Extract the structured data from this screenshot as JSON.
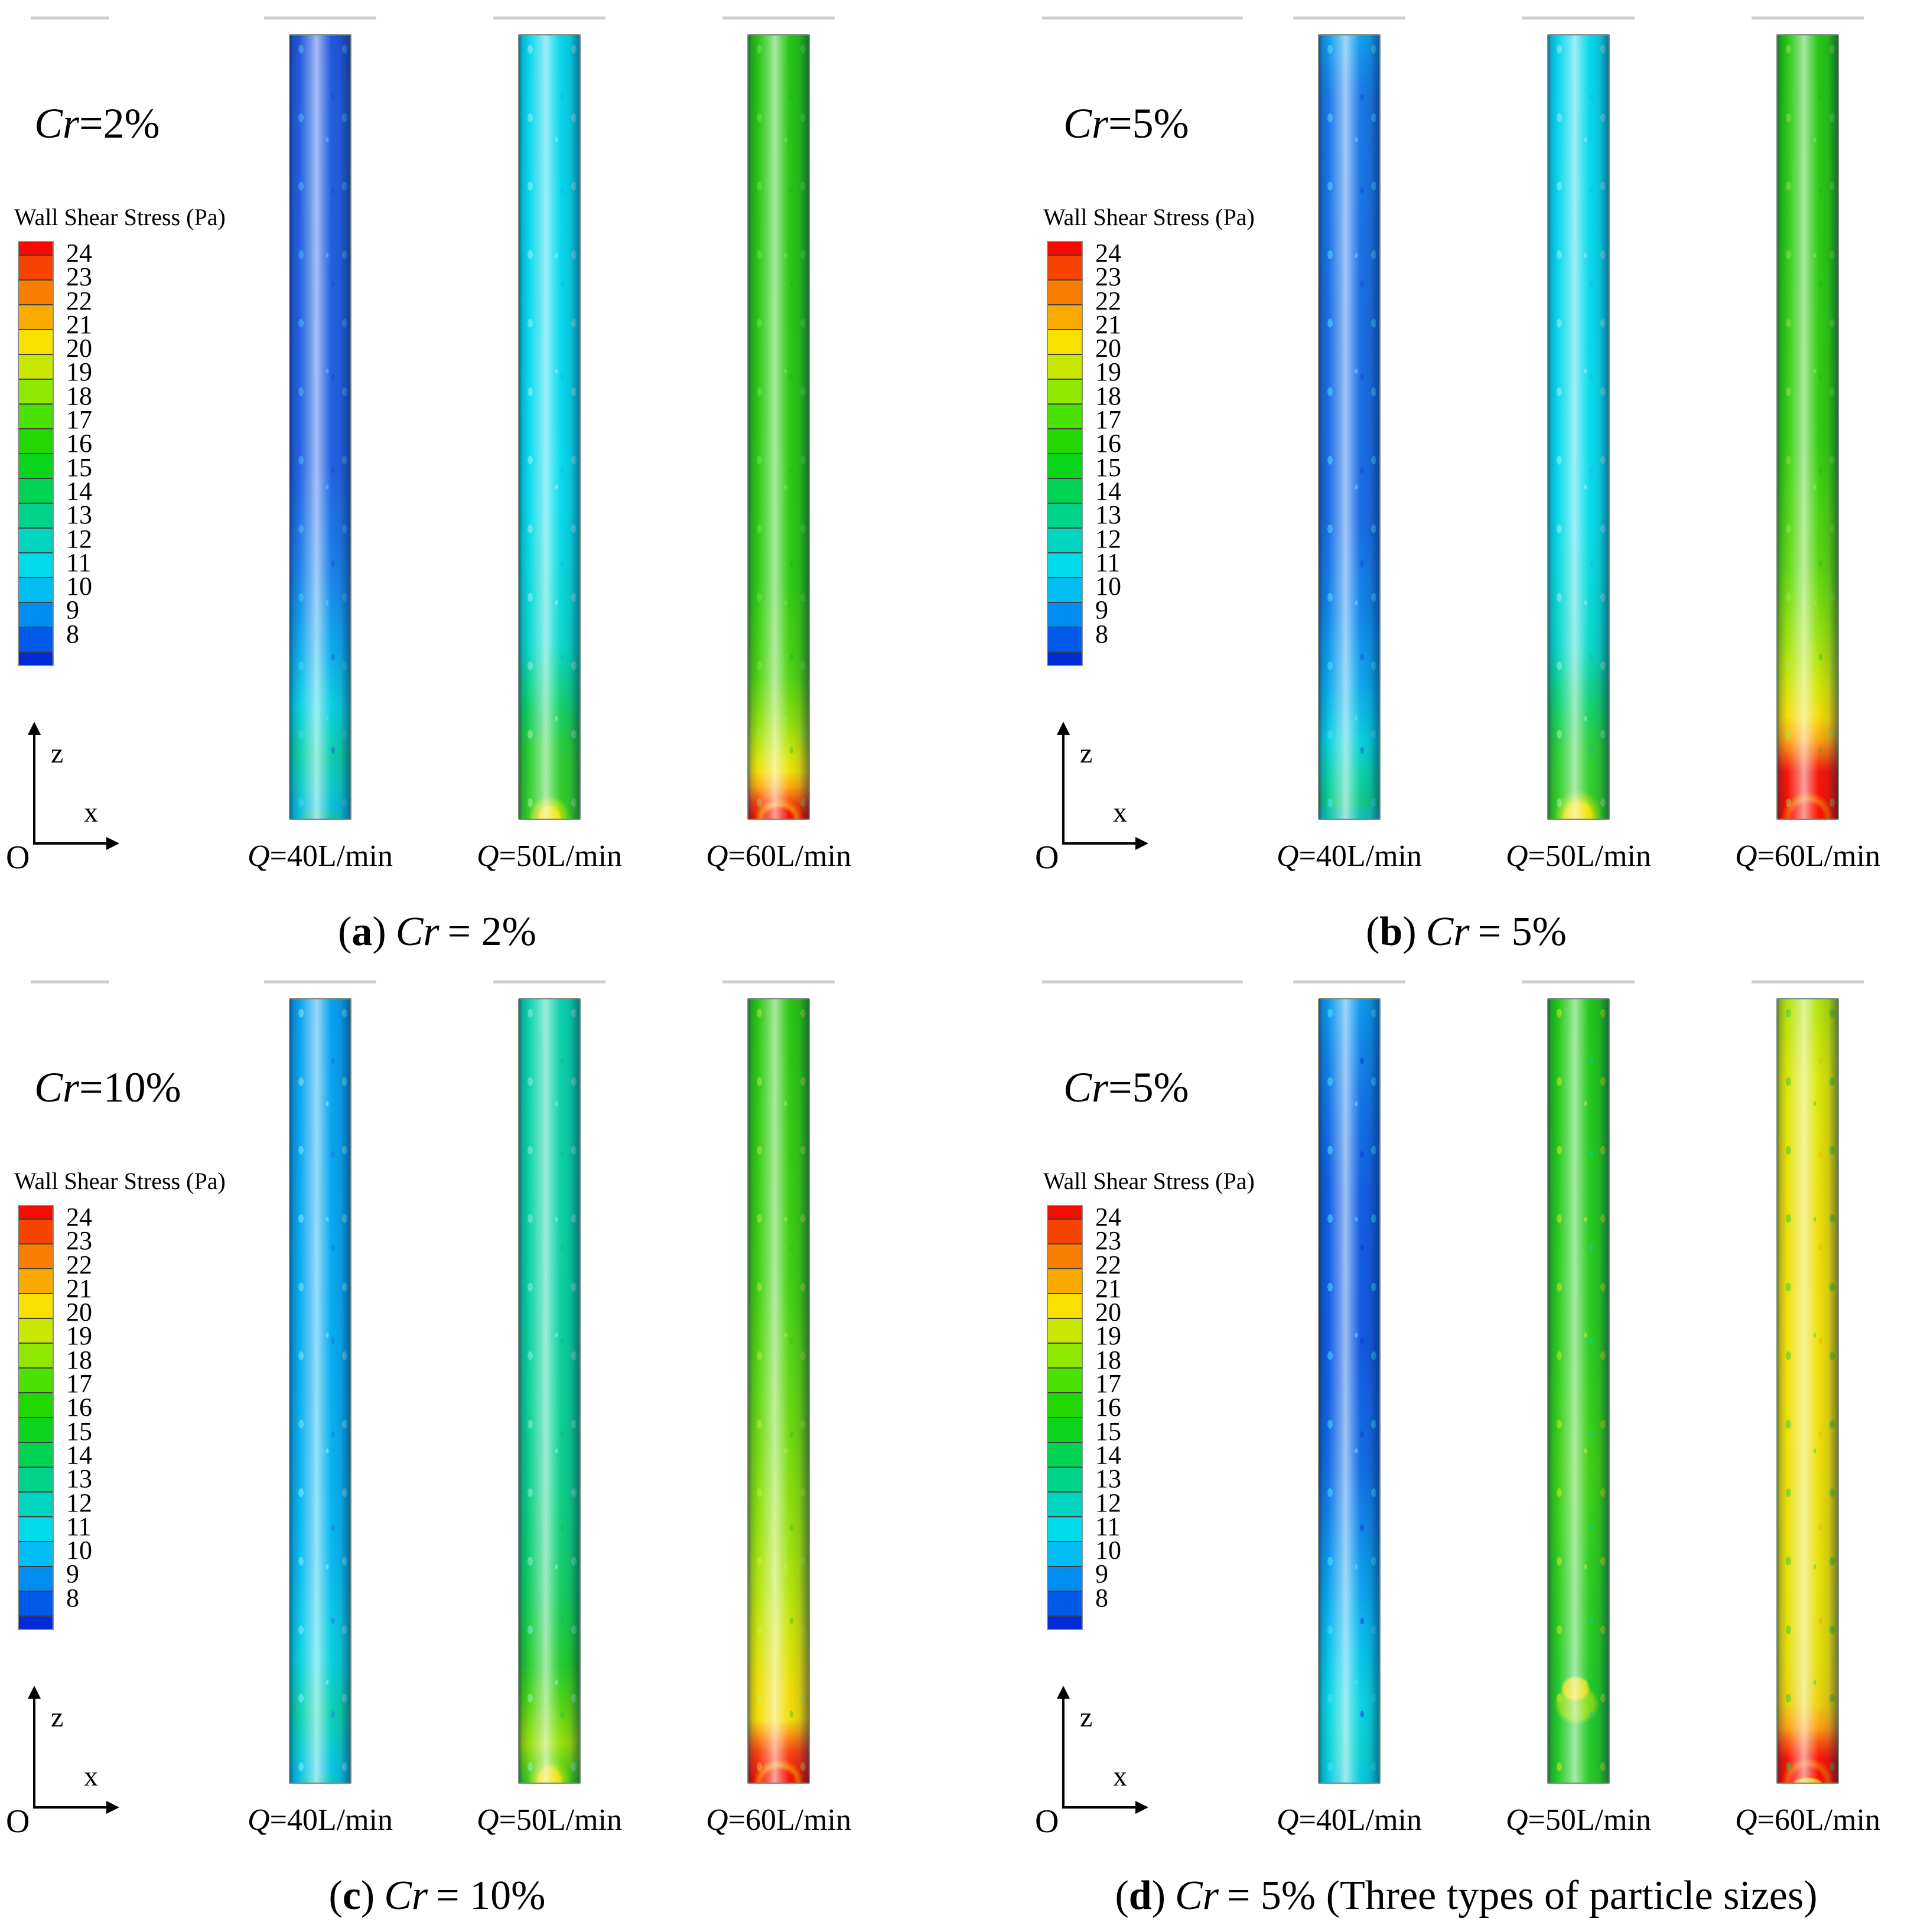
{
  "shared": {
    "legend_title": "Wall Shear Stress (Pa)",
    "colorbar": {
      "min": 8,
      "max": 24,
      "labels": [
        "24",
        "23",
        "22",
        "21",
        "20",
        "19",
        "18",
        "17",
        "16",
        "15",
        "14",
        "13",
        "12",
        "11",
        "10",
        "9",
        "8"
      ],
      "colors": [
        "#f60b00",
        "#f64300",
        "#f97e00",
        "#fbab00",
        "#f8e000",
        "#c9e800",
        "#8fe800",
        "#4ae200",
        "#22d800",
        "#0cd41c",
        "#00d455",
        "#00d38a",
        "#00d5c0",
        "#00dcec",
        "#00bdf4",
        "#008cf0",
        "#005ae8",
        "#002cd8"
      ]
    },
    "axis": {
      "vertical": "z",
      "horizontal": "x",
      "origin": "O"
    },
    "flow_labels": [
      "Q=40L/min",
      "Q=50L/min",
      "Q=60L/min"
    ],
    "rule_color": "#cdcdcd"
  },
  "panels": [
    {
      "id": "a",
      "cr": {
        "italic": "Cr",
        "value": "=2%"
      },
      "caption": {
        "open": "(",
        "tag": "a",
        "close": ")",
        "italic": "Cr",
        "rest": "= 2%"
      },
      "pipes": [
        {
          "stops": [
            [
              0,
              "#2456da"
            ],
            [
              10,
              "#2360e2"
            ],
            [
              55,
              "#2263e4"
            ],
            [
              68,
              "#1d82ea"
            ],
            [
              78,
              "#10aaee"
            ],
            [
              86,
              "#0ad2e2"
            ],
            [
              92,
              "#0ed0aa"
            ],
            [
              96,
              "#0ec9c9"
            ],
            [
              100,
              "#0abce8"
            ]
          ],
          "spots": [
            "rgba(90,210,255,0.40)",
            "rgba(25,60,205,0.35)"
          ],
          "glow": [
            [
              "rgba(30,200,130,0.45)",
              60,
              26
            ]
          ]
        },
        {
          "stops": [
            [
              0,
              "#0ad6ec"
            ],
            [
              60,
              "#0adcee"
            ],
            [
              78,
              "#0bd8cc"
            ],
            [
              86,
              "#14d26a"
            ],
            [
              91,
              "#2cd036"
            ],
            [
              100,
              "#36d024"
            ]
          ],
          "spots": [
            "rgba(255,255,255,0.30)",
            "rgba(15,170,230,0.30)"
          ],
          "glow": [
            [
              "rgba(247,226,8,0.95)",
              30,
              34
            ],
            [
              "rgba(170,225,14,0.80)",
              48,
              52
            ]
          ]
        },
        {
          "stops": [
            [
              0,
              "#26c614"
            ],
            [
              70,
              "#2ecc12"
            ],
            [
              82,
              "#50d411"
            ],
            [
              88,
              "#94e00e"
            ],
            [
              92,
              "#d6e60a"
            ],
            [
              94,
              "#f2e009"
            ],
            [
              96,
              "#fba512"
            ],
            [
              98,
              "#fa4510"
            ],
            [
              100,
              "#f60d00"
            ]
          ],
          "spots": [
            "rgba(130,240,110,0.35)",
            "rgba(12,175,40,0.30)"
          ],
          "glow": [
            [
              "rgba(246,11,0,0.95)",
              40,
              30
            ],
            [
              "rgba(251,140,10,0.85)",
              56,
              48
            ]
          ]
        }
      ]
    },
    {
      "id": "b",
      "cr": {
        "italic": "Cr",
        "value": "=5%"
      },
      "caption": {
        "open": "(",
        "tag": "b",
        "close": ")",
        "italic": "Cr",
        "rest": "= 5%"
      },
      "pipes": [
        {
          "stops": [
            [
              0,
              "#12a0ee"
            ],
            [
              8,
              "#1a7ae8"
            ],
            [
              35,
              "#1c70e6"
            ],
            [
              62,
              "#1b6ee6"
            ],
            [
              74,
              "#1289ec"
            ],
            [
              83,
              "#0dabee"
            ],
            [
              90,
              "#0ad0de"
            ],
            [
              95,
              "#0ed2a6"
            ],
            [
              98,
              "#12cb8a"
            ],
            [
              100,
              "#12c4d8"
            ]
          ],
          "spots": [
            "rgba(80,225,255,0.50)",
            "rgba(22,65,215,0.42)"
          ],
          "glow": [
            [
              "rgba(16,195,150,0.50)",
              62,
              28
            ]
          ]
        },
        {
          "stops": [
            [
              0,
              "#0ad6ec"
            ],
            [
              60,
              "#0adcee"
            ],
            [
              78,
              "#0bd8cc"
            ],
            [
              86,
              "#14d26a"
            ],
            [
              91,
              "#2cd036"
            ],
            [
              100,
              "#36d024"
            ]
          ],
          "spots": [
            "rgba(255,255,255,0.30)",
            "rgba(15,170,230,0.30)"
          ],
          "glow": [
            [
              "rgba(247,226,8,0.95)",
              40,
              48
            ],
            [
              "rgba(150,222,18,0.80)",
              56,
              66
            ]
          ]
        },
        {
          "stops": [
            [
              0,
              "#26c614"
            ],
            [
              52,
              "#34cd12"
            ],
            [
              68,
              "#5ed810"
            ],
            [
              77,
              "#9ae20e"
            ],
            [
              83,
              "#d0e50a"
            ],
            [
              87,
              "#f4dd09"
            ],
            [
              90,
              "#fba512"
            ],
            [
              92,
              "#fa5e10"
            ],
            [
              94,
              "#f7180a"
            ],
            [
              100,
              "#f60d00"
            ]
          ],
          "spots": [
            "rgba(150,240,90,0.40)",
            "rgba(12,175,40,0.30)"
          ],
          "glow": [
            [
              "rgba(246,11,0,0.90)",
              48,
              44
            ],
            [
              "rgba(251,120,10,0.80)",
              60,
              62
            ]
          ]
        }
      ]
    },
    {
      "id": "c",
      "cr": {
        "italic": "Cr",
        "value": "=10%"
      },
      "caption": {
        "open": "(",
        "tag": "c",
        "close": ")",
        "italic": "Cr",
        "rest": "= 10%"
      },
      "pipes": [
        {
          "stops": [
            [
              0,
              "#0aa2f0"
            ],
            [
              50,
              "#09aef2"
            ],
            [
              72,
              "#0abaf0"
            ],
            [
              84,
              "#0ad2e2"
            ],
            [
              91,
              "#0dd2b0"
            ],
            [
              96,
              "#0acbd4"
            ],
            [
              100,
              "#0ac0ec"
            ]
          ],
          "spots": [
            "rgba(140,240,255,0.50)",
            "rgba(25,95,235,0.35)"
          ],
          "glow": [
            [
              "rgba(20,205,170,0.50)",
              58,
              26
            ]
          ]
        },
        {
          "stops": [
            [
              0,
              "#0cd2ae"
            ],
            [
              40,
              "#0dd2a2"
            ],
            [
              62,
              "#0fd18e"
            ],
            [
              76,
              "#13cf62"
            ],
            [
              85,
              "#25cd2e"
            ],
            [
              90,
              "#54d613"
            ],
            [
              95,
              "#9ae00e"
            ],
            [
              100,
              "#36d01e"
            ]
          ],
          "spots": [
            "rgba(150,245,230,0.45)",
            "rgba(18,185,90,0.35)"
          ],
          "glow": [
            [
              "rgba(245,225,8,0.90)",
              34,
              42
            ],
            [
              "rgba(150,222,16,0.80)",
              50,
              58
            ]
          ]
        },
        {
          "stops": [
            [
              0,
              "#2ac813"
            ],
            [
              35,
              "#3ed012"
            ],
            [
              55,
              "#6eda10"
            ],
            [
              70,
              "#9ee20e"
            ],
            [
              80,
              "#cae50b"
            ],
            [
              88,
              "#eede09"
            ],
            [
              92,
              "#f4dd09"
            ],
            [
              94,
              "#fb9012"
            ],
            [
              96,
              "#fa4510"
            ],
            [
              100,
              "#f60d00"
            ]
          ],
          "spots": [
            "rgba(210,240,80,0.40)",
            "rgba(35,185,25,0.35)"
          ],
          "glow": [
            [
              "rgba(246,11,0,0.92)",
              46,
              38
            ],
            [
              "rgba(251,150,10,0.80)",
              58,
              54
            ]
          ]
        }
      ]
    },
    {
      "id": "d",
      "cr": {
        "italic": "Cr",
        "value": "=5%"
      },
      "caption": {
        "open": "(",
        "tag": "d",
        "close": ")",
        "italic": "Cr",
        "rest": "= 5% (Three types of particle sizes)"
      },
      "pipes": [
        {
          "stops": [
            [
              0,
              "#0e9cee"
            ],
            [
              12,
              "#1378e8"
            ],
            [
              25,
              "#1460e4"
            ],
            [
              45,
              "#145ce4"
            ],
            [
              60,
              "#1470e6"
            ],
            [
              72,
              "#0f9aee"
            ],
            [
              82,
              "#0ac0ee"
            ],
            [
              90,
              "#0ad6e2"
            ],
            [
              96,
              "#0ad2d2"
            ],
            [
              100,
              "#0acae6"
            ]
          ],
          "spots": [
            "rgba(60,225,250,0.55)",
            "rgba(20,50,215,0.50)"
          ],
          "glow": [
            [
              "rgba(12,205,205,0.45)",
              58,
              24
            ]
          ]
        },
        {
          "stops": [
            [
              0,
              "#22c918"
            ],
            [
              25,
              "#26cb20"
            ],
            [
              45,
              "#2dcd1e"
            ],
            [
              60,
              "#3ed115"
            ],
            [
              72,
              "#2ece1e"
            ],
            [
              82,
              "#29cc22"
            ],
            [
              90,
              "#22ca2c"
            ],
            [
              100,
              "#28cb26"
            ]
          ],
          "spots": [
            "rgba(200,232,20,0.55)",
            "rgba(12,208,170,0.50)"
          ],
          "glow": [
            [
              "rgba(246,226,8,0.85)",
              34,
              30,
              "45%",
              "88%"
            ],
            [
              "rgba(170,226,14,0.70)",
              52,
              46,
              "47%",
              "90%"
            ]
          ]
        },
        {
          "stops": [
            [
              0,
              "#b0e20c"
            ],
            [
              10,
              "#dae60a"
            ],
            [
              25,
              "#eadf09"
            ],
            [
              45,
              "#f0e009"
            ],
            [
              60,
              "#ece009"
            ],
            [
              75,
              "#e6e00b"
            ],
            [
              85,
              "#e4de0c"
            ],
            [
              90,
              "#eed00c"
            ],
            [
              93,
              "#fba012"
            ],
            [
              95,
              "#fa5210"
            ],
            [
              97,
              "#f7150a"
            ],
            [
              100,
              "#f60d00"
            ]
          ],
          "spots": [
            "rgba(40,200,45,0.50)",
            "rgba(250,170,20,0.45)"
          ],
          "glow": [
            [
              "rgba(250,200,10,0.90)",
              34,
              12
            ],
            [
              "rgba(246,11,0,0.90)",
              48,
              42
            ],
            [
              "rgba(251,120,10,0.75)",
              60,
              58
            ]
          ]
        }
      ]
    }
  ],
  "chart_data": {
    "type": "heatmap",
    "title": "Wall shear stress contours on pipe wall for different particle volume concentrations Cr and flow rates Q",
    "legend": {
      "label": "Wall Shear Stress (Pa)",
      "range": [
        8,
        24
      ],
      "bands": 17,
      "legend_position": "left"
    },
    "panels": [
      {
        "caption": "(a) Cr = 2%",
        "series": [
          {
            "name": "Q=40L/min",
            "wss_range_Pa": [
              9,
              13
            ]
          },
          {
            "name": "Q=50L/min",
            "wss_range_Pa": [
              12,
              21
            ]
          },
          {
            "name": "Q=60L/min",
            "wss_range_Pa": [
              16,
              25
            ]
          }
        ]
      },
      {
        "caption": "(b) Cr = 5%",
        "series": [
          {
            "name": "Q=40L/min",
            "wss_range_Pa": [
              10,
              14
            ]
          },
          {
            "name": "Q=50L/min",
            "wss_range_Pa": [
              12,
              21
            ]
          },
          {
            "name": "Q=60L/min",
            "wss_range_Pa": [
              17,
              25
            ]
          }
        ]
      },
      {
        "caption": "(c) Cr = 10%",
        "series": [
          {
            "name": "Q=40L/min",
            "wss_range_Pa": [
              11,
              14
            ]
          },
          {
            "name": "Q=50L/min",
            "wss_range_Pa": [
              13,
              21
            ]
          },
          {
            "name": "Q=60L/min",
            "wss_range_Pa": [
              17,
              25
            ]
          }
        ]
      },
      {
        "caption": "(d) Cr = 5% (Three types of particle sizes)",
        "series": [
          {
            "name": "Q=40L/min",
            "wss_range_Pa": [
              9,
              13
            ]
          },
          {
            "name": "Q=50L/min",
            "wss_range_Pa": [
              15,
              19
            ]
          },
          {
            "name": "Q=60L/min",
            "wss_range_Pa": [
              19,
              25
            ]
          }
        ]
      }
    ]
  }
}
